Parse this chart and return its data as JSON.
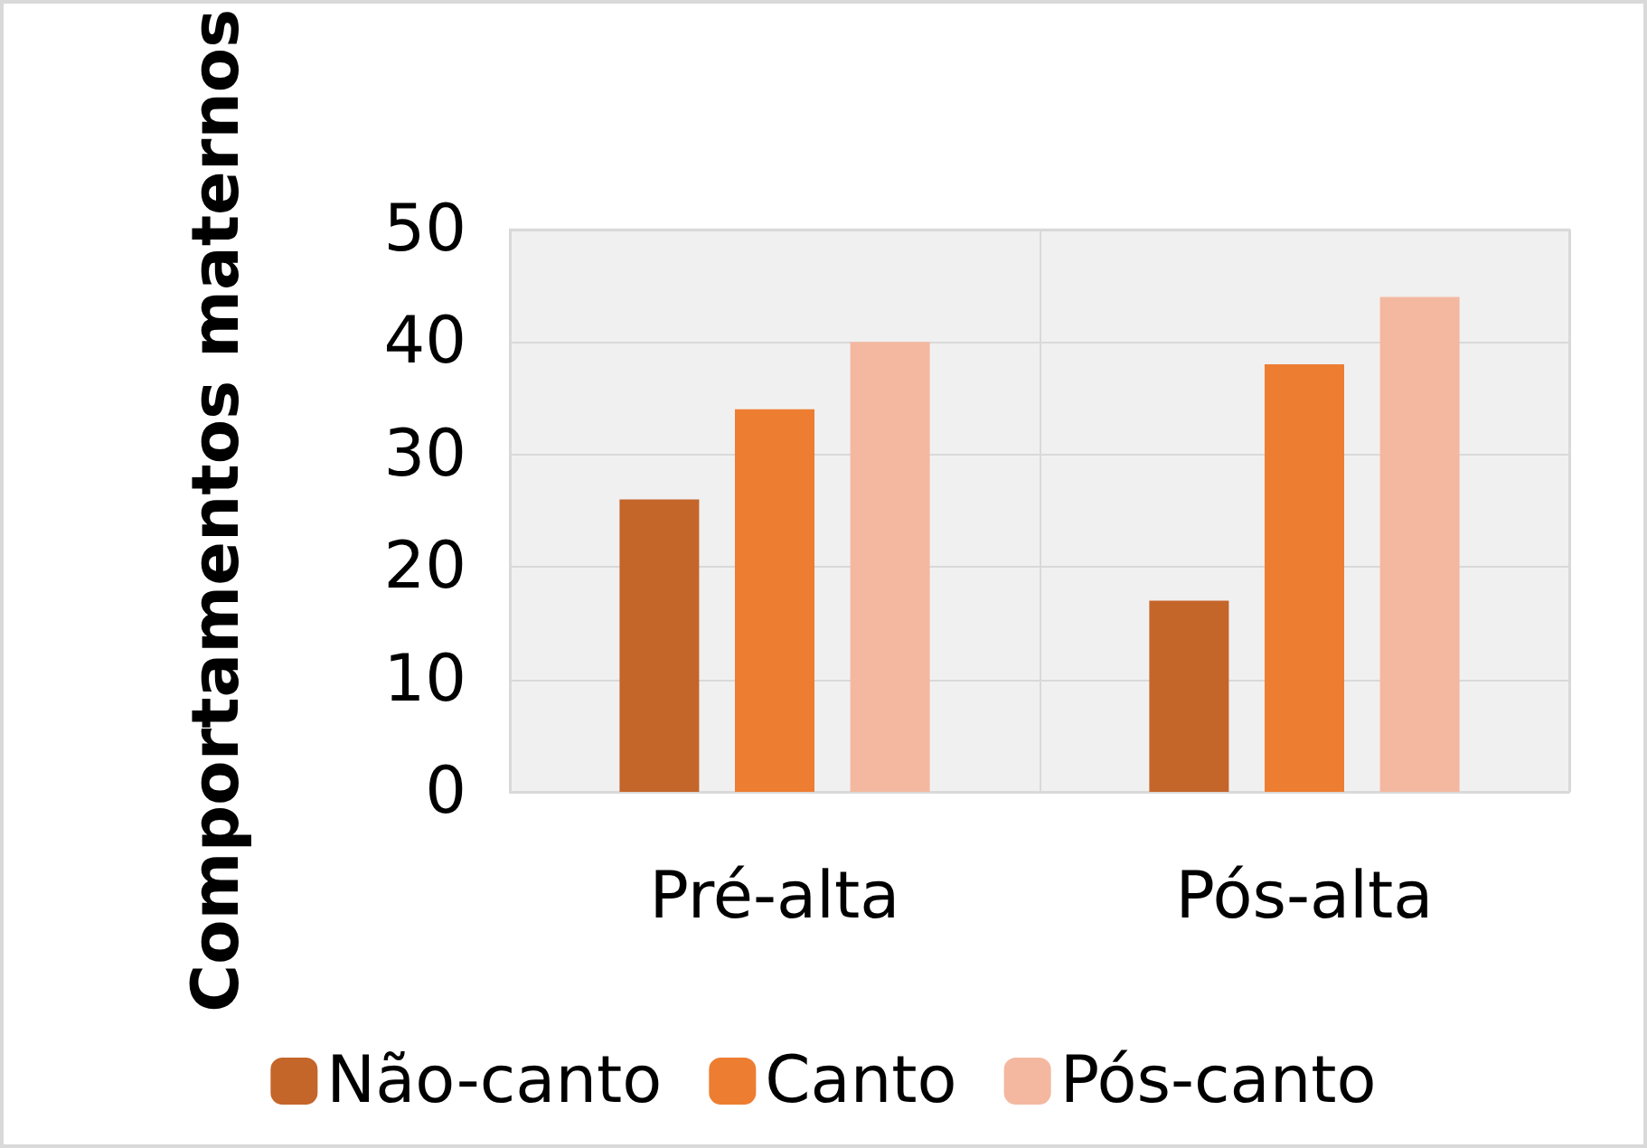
{
  "chart_data": {
    "type": "bar",
    "ylabel": "Comportamentos maternos",
    "categories": [
      "Pré-alta",
      "Pós-alta"
    ],
    "series": [
      {
        "name": "Não-canto",
        "color": "#c4652a",
        "values": [
          26,
          17
        ]
      },
      {
        "name": "Canto",
        "color": "#ed7d31",
        "values": [
          34,
          38
        ]
      },
      {
        "name": "Pós-canto",
        "color": "#f4b8a0",
        "values": [
          40,
          44
        ]
      }
    ],
    "ylim": [
      0,
      50
    ],
    "yticks": [
      0,
      10,
      20,
      30,
      40,
      50
    ],
    "grid": true,
    "legend": "bottom"
  }
}
